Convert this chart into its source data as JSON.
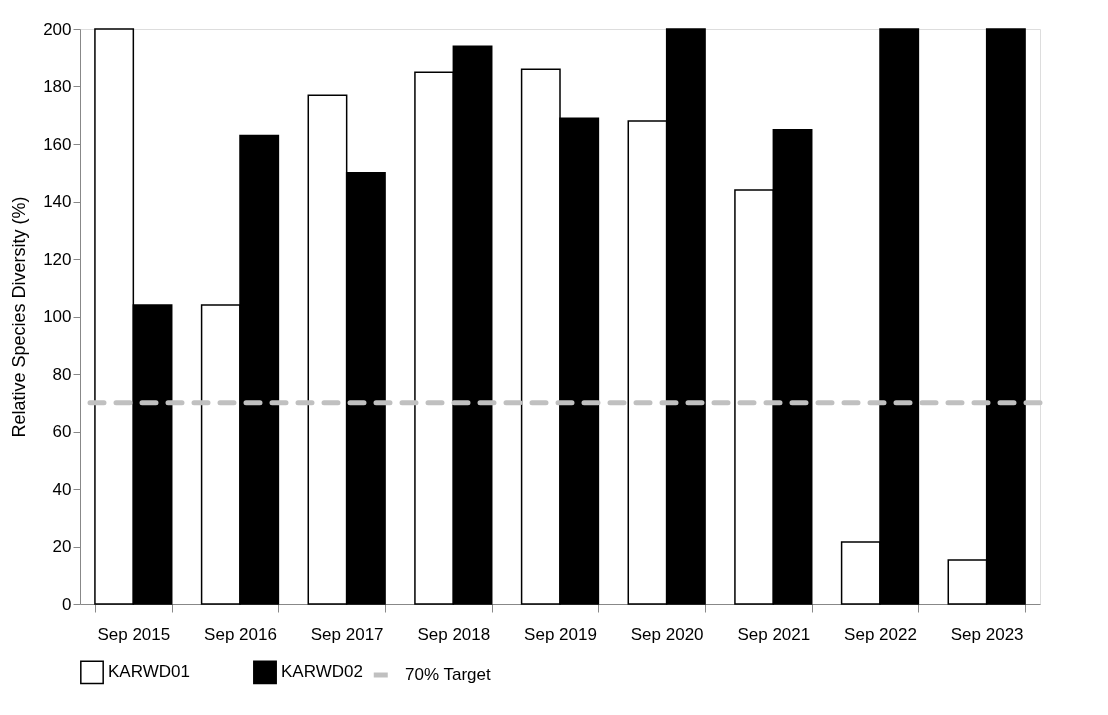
{
  "chart_data": {
    "type": "bar",
    "ylabel": "Relative Species Diversity (%)",
    "categories": [
      "Sep 2015",
      "Sep 2016",
      "Sep 2017",
      "Sep 2018",
      "Sep 2019",
      "Sep 2020",
      "Sep 2021",
      "Sep 2022",
      "Sep 2023"
    ],
    "series": [
      {
        "name": "KARWD01",
        "color": "#ffffff",
        "values": [
          200,
          104,
          177,
          185,
          186,
          168,
          144,
          21.6,
          15.3
        ]
      },
      {
        "name": "KARWD02",
        "color": "#000000",
        "values": [
          104,
          163,
          150,
          194,
          169,
          200,
          165,
          200,
          200
        ]
      }
    ],
    "ylim": [
      0,
      200
    ],
    "yticks": [
      0,
      20,
      40,
      60,
      80,
      100,
      120,
      140,
      160,
      180,
      200
    ],
    "ref_lines": [
      {
        "axis": "y",
        "value": 70,
        "label": "70% Target",
        "color": "#c0c0c0",
        "line_style": "dashed"
      }
    ],
    "grid": false,
    "legend": "bottom"
  }
}
